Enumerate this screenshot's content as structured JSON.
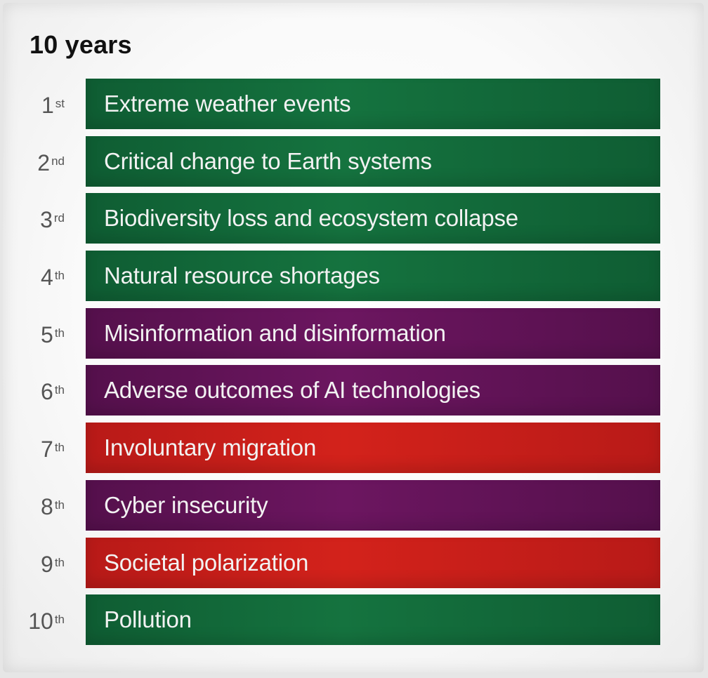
{
  "title": "10 years",
  "categories": {
    "env": "#0f5d33",
    "tech": "#55104c",
    "soc": "#b81a18"
  },
  "items": [
    {
      "rank": "1",
      "suffix": "st",
      "label": "Extreme weather events",
      "category": "env"
    },
    {
      "rank": "2",
      "suffix": "nd",
      "label": "Critical change to Earth systems",
      "category": "env"
    },
    {
      "rank": "3",
      "suffix": "rd",
      "label": "Biodiversity loss and ecosystem collapse",
      "category": "env"
    },
    {
      "rank": "4",
      "suffix": "th",
      "label": "Natural resource shortages",
      "category": "env"
    },
    {
      "rank": "5",
      "suffix": "th",
      "label": "Misinformation and disinformation",
      "category": "tech"
    },
    {
      "rank": "6",
      "suffix": "th",
      "label": "Adverse outcomes of AI technologies",
      "category": "tech"
    },
    {
      "rank": "7",
      "suffix": "th",
      "label": "Involuntary migration",
      "category": "soc"
    },
    {
      "rank": "8",
      "suffix": "th",
      "label": "Cyber insecurity",
      "category": "tech"
    },
    {
      "rank": "9",
      "suffix": "th",
      "label": "Societal polarization",
      "category": "soc"
    },
    {
      "rank": "10",
      "suffix": "th",
      "label": "Pollution",
      "category": "env"
    }
  ]
}
